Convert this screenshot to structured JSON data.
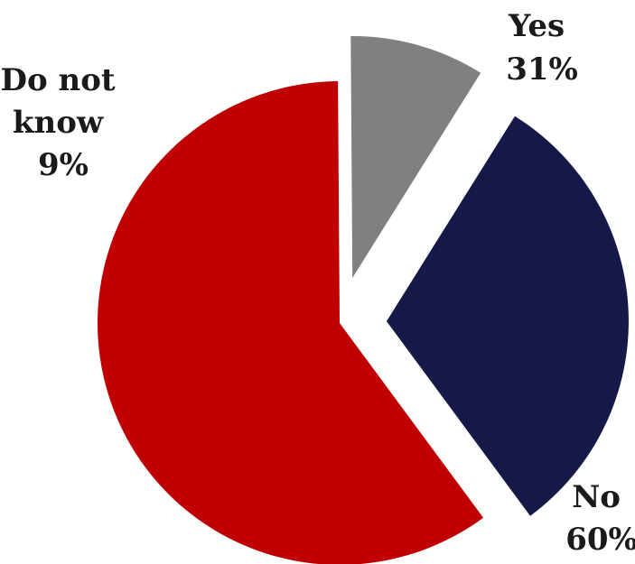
{
  "chart_data": {
    "type": "pie",
    "categories": [
      "Yes",
      "No",
      "Do not know"
    ],
    "values": [
      31,
      60,
      9
    ],
    "unit": "%",
    "slices": [
      {
        "label_lines": [
          "Yes"
        ],
        "value_text": "31%",
        "value": 31,
        "color": "#161848",
        "exploded": true
      },
      {
        "label_lines": [
          "No"
        ],
        "value_text": "60%",
        "value": 60,
        "color": "#c00000",
        "exploded": false
      },
      {
        "label_lines": [
          "Do not",
          "know"
        ],
        "value_text": "9%",
        "value": 9,
        "color": "#808080",
        "exploded": true
      }
    ],
    "start_angle_deg": 32,
    "direction": "clockwise",
    "legend": "none",
    "title": ""
  }
}
